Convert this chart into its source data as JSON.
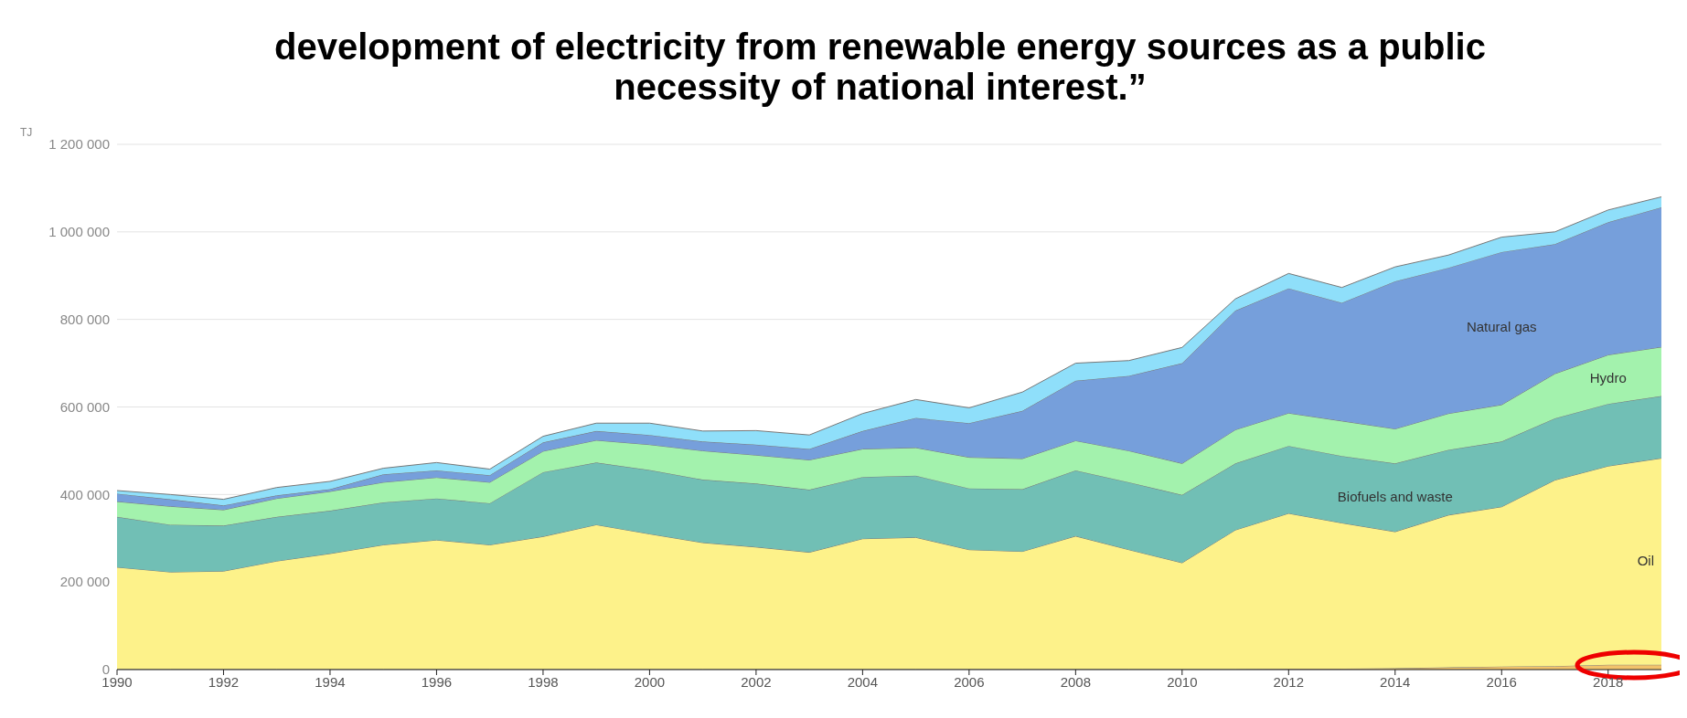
{
  "chart_data": {
    "type": "area",
    "stacked": true,
    "ylabel": "TJ",
    "annotations": [
      "development of electricity from renewable energy sources as a public necessity of national interest.”"
    ],
    "x": [
      1990,
      1991,
      1992,
      1993,
      1994,
      1995,
      1996,
      1997,
      1998,
      1999,
      2000,
      2001,
      2002,
      2003,
      2004,
      2005,
      2006,
      2007,
      2008,
      2009,
      2010,
      2011,
      2012,
      2013,
      2014,
      2015,
      2016,
      2017,
      2018,
      2019
    ],
    "series": [
      {
        "color": "#f2c26b",
        "values": [
          1000,
          1000,
          1000,
          1000,
          1000,
          1000,
          1000,
          1000,
          1000,
          1000,
          1000,
          1000,
          1000,
          1000,
          1000,
          1000,
          1000,
          1000,
          1000,
          1000,
          1000,
          1000,
          2000,
          2000,
          3000,
          5000,
          7000,
          8000,
          11000,
          11000
        ]
      },
      {
        "name": "Oil",
        "color": "#fdf28a",
        "values": [
          233000,
          222000,
          224000,
          247000,
          264000,
          284000,
          295000,
          284000,
          303000,
          330000,
          309000,
          289000,
          279000,
          267000,
          298000,
          301000,
          273000,
          269000,
          304000,
          273000,
          243000,
          318000,
          355000,
          333000,
          312000,
          348000,
          365000,
          425000,
          454000,
          472000
        ]
      },
      {
        "name": "Biofuels and waste",
        "color": "#71bfb5",
        "values": [
          115000,
          108000,
          104000,
          101000,
          98000,
          97000,
          95000,
          95000,
          147000,
          142000,
          146000,
          144000,
          145000,
          143000,
          141000,
          141000,
          140000,
          142000,
          150000,
          154000,
          155000,
          152000,
          154000,
          153000,
          156000,
          149000,
          149000,
          141000,
          142000,
          142000
        ]
      },
      {
        "name": "Hydro",
        "color": "#a3f2ad",
        "values": [
          35000,
          42000,
          36000,
          42000,
          44000,
          46000,
          48000,
          48000,
          48000,
          51000,
          58000,
          66000,
          65000,
          68000,
          64000,
          64000,
          71000,
          70000,
          68000,
          72000,
          72000,
          77000,
          75000,
          80000,
          79000,
          83000,
          84000,
          102000,
          112000,
          112000
        ]
      },
      {
        "name": "Natural gas",
        "color": "#769fdb",
        "values": [
          18000,
          16000,
          10000,
          7000,
          5000,
          18000,
          16000,
          16000,
          20000,
          21000,
          22000,
          21000,
          24000,
          25000,
          41000,
          68000,
          78000,
          109000,
          137000,
          171000,
          229000,
          272000,
          285000,
          270000,
          337000,
          333000,
          349000,
          296000,
          303000,
          319000
        ]
      },
      {
        "color": "#8fdffa",
        "values": [
          7000,
          11000,
          14000,
          18000,
          18000,
          14000,
          18000,
          14000,
          14000,
          18000,
          27000,
          24000,
          32000,
          32000,
          40000,
          42000,
          35000,
          43000,
          40000,
          35000,
          36000,
          27000,
          34000,
          35000,
          33000,
          29000,
          34000,
          28000,
          28000,
          24000
        ]
      }
    ],
    "xlim": [
      1990,
      2019
    ],
    "xticks": [
      1990,
      1992,
      1994,
      1996,
      1998,
      2000,
      2002,
      2004,
      2006,
      2008,
      2010,
      2012,
      2014,
      2016,
      2018
    ],
    "ylim": [
      0,
      1200000
    ],
    "yticks": [
      0,
      {
        "value": 200000,
        "label": "200 000"
      },
      {
        "value": 400000,
        "label": "400 000"
      },
      {
        "value": 600000,
        "label": "600 000"
      },
      {
        "value": 800000,
        "label": "800 000"
      },
      {
        "value": 1000000,
        "label": "1 000 000"
      },
      {
        "value": 1200000,
        "label": "1 200 000"
      }
    ],
    "grid": "y",
    "legend": false
  }
}
